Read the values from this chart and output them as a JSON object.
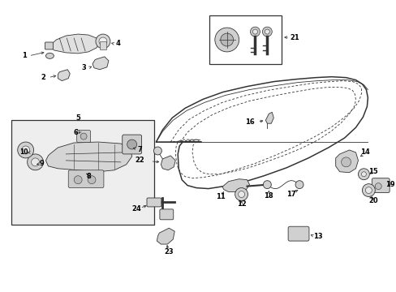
{
  "background_color": "#ffffff",
  "line_color": "#333333",
  "fig_width": 4.89,
  "fig_height": 3.6,
  "dpi": 100,
  "door_outer": {
    "x": [
      0.395,
      0.415,
      0.445,
      0.49,
      0.54,
      0.6,
      0.66,
      0.72,
      0.77,
      0.82,
      0.86,
      0.89,
      0.91,
      0.92,
      0.92,
      0.915,
      0.905,
      0.885,
      0.855,
      0.81,
      0.76,
      0.7,
      0.64,
      0.58,
      0.53,
      0.49,
      0.46,
      0.435,
      0.415,
      0.4,
      0.39,
      0.39,
      0.393,
      0.395
    ],
    "y": [
      0.96,
      0.978,
      0.99,
      0.997,
      0.998,
      0.996,
      0.99,
      0.98,
      0.967,
      0.947,
      0.92,
      0.887,
      0.848,
      0.8,
      0.75,
      0.698,
      0.645,
      0.59,
      0.535,
      0.478,
      0.425,
      0.378,
      0.34,
      0.315,
      0.305,
      0.305,
      0.312,
      0.325,
      0.345,
      0.375,
      0.42,
      0.5,
      0.7,
      0.96
    ]
  },
  "door_inner1": {
    "x": [
      0.43,
      0.455,
      0.49,
      0.54,
      0.595,
      0.655,
      0.715,
      0.768,
      0.815,
      0.852,
      0.877,
      0.893,
      0.9,
      0.9,
      0.894,
      0.88,
      0.856,
      0.822,
      0.778,
      0.728,
      0.672,
      0.615,
      0.56,
      0.515,
      0.478,
      0.452,
      0.435,
      0.425,
      0.423,
      0.424,
      0.428,
      0.43
    ],
    "y": [
      0.93,
      0.952,
      0.967,
      0.975,
      0.974,
      0.97,
      0.96,
      0.947,
      0.928,
      0.902,
      0.87,
      0.834,
      0.794,
      0.75,
      0.703,
      0.652,
      0.6,
      0.546,
      0.49,
      0.437,
      0.39,
      0.352,
      0.328,
      0.316,
      0.316,
      0.323,
      0.336,
      0.358,
      0.395,
      0.48,
      0.7,
      0.93
    ]
  },
  "door_inner2": {
    "x": [
      0.455,
      0.478,
      0.51,
      0.558,
      0.612,
      0.668,
      0.724,
      0.773,
      0.816,
      0.849,
      0.871,
      0.884,
      0.89,
      0.89,
      0.884,
      0.87,
      0.847,
      0.812,
      0.77,
      0.72,
      0.665,
      0.61,
      0.558,
      0.514,
      0.48,
      0.458,
      0.445,
      0.44,
      0.44,
      0.443,
      0.45,
      0.455
    ],
    "y": [
      0.908,
      0.93,
      0.946,
      0.956,
      0.956,
      0.952,
      0.942,
      0.929,
      0.91,
      0.885,
      0.853,
      0.818,
      0.778,
      0.735,
      0.688,
      0.638,
      0.587,
      0.534,
      0.48,
      0.428,
      0.382,
      0.345,
      0.322,
      0.31,
      0.31,
      0.317,
      0.33,
      0.352,
      0.4,
      0.5,
      0.7,
      0.908
    ]
  },
  "window_line": {
    "x": [
      0.395,
      0.43,
      0.48,
      0.54,
      0.605,
      0.67,
      0.73,
      0.785,
      0.83,
      0.865,
      0.895,
      0.917,
      0.92
    ],
    "y": [
      0.5,
      0.5,
      0.5,
      0.5,
      0.5,
      0.5,
      0.5,
      0.5,
      0.5,
      0.5,
      0.5,
      0.5,
      0.5
    ]
  },
  "label_fs": 6.0,
  "arrow_lw": 0.6
}
